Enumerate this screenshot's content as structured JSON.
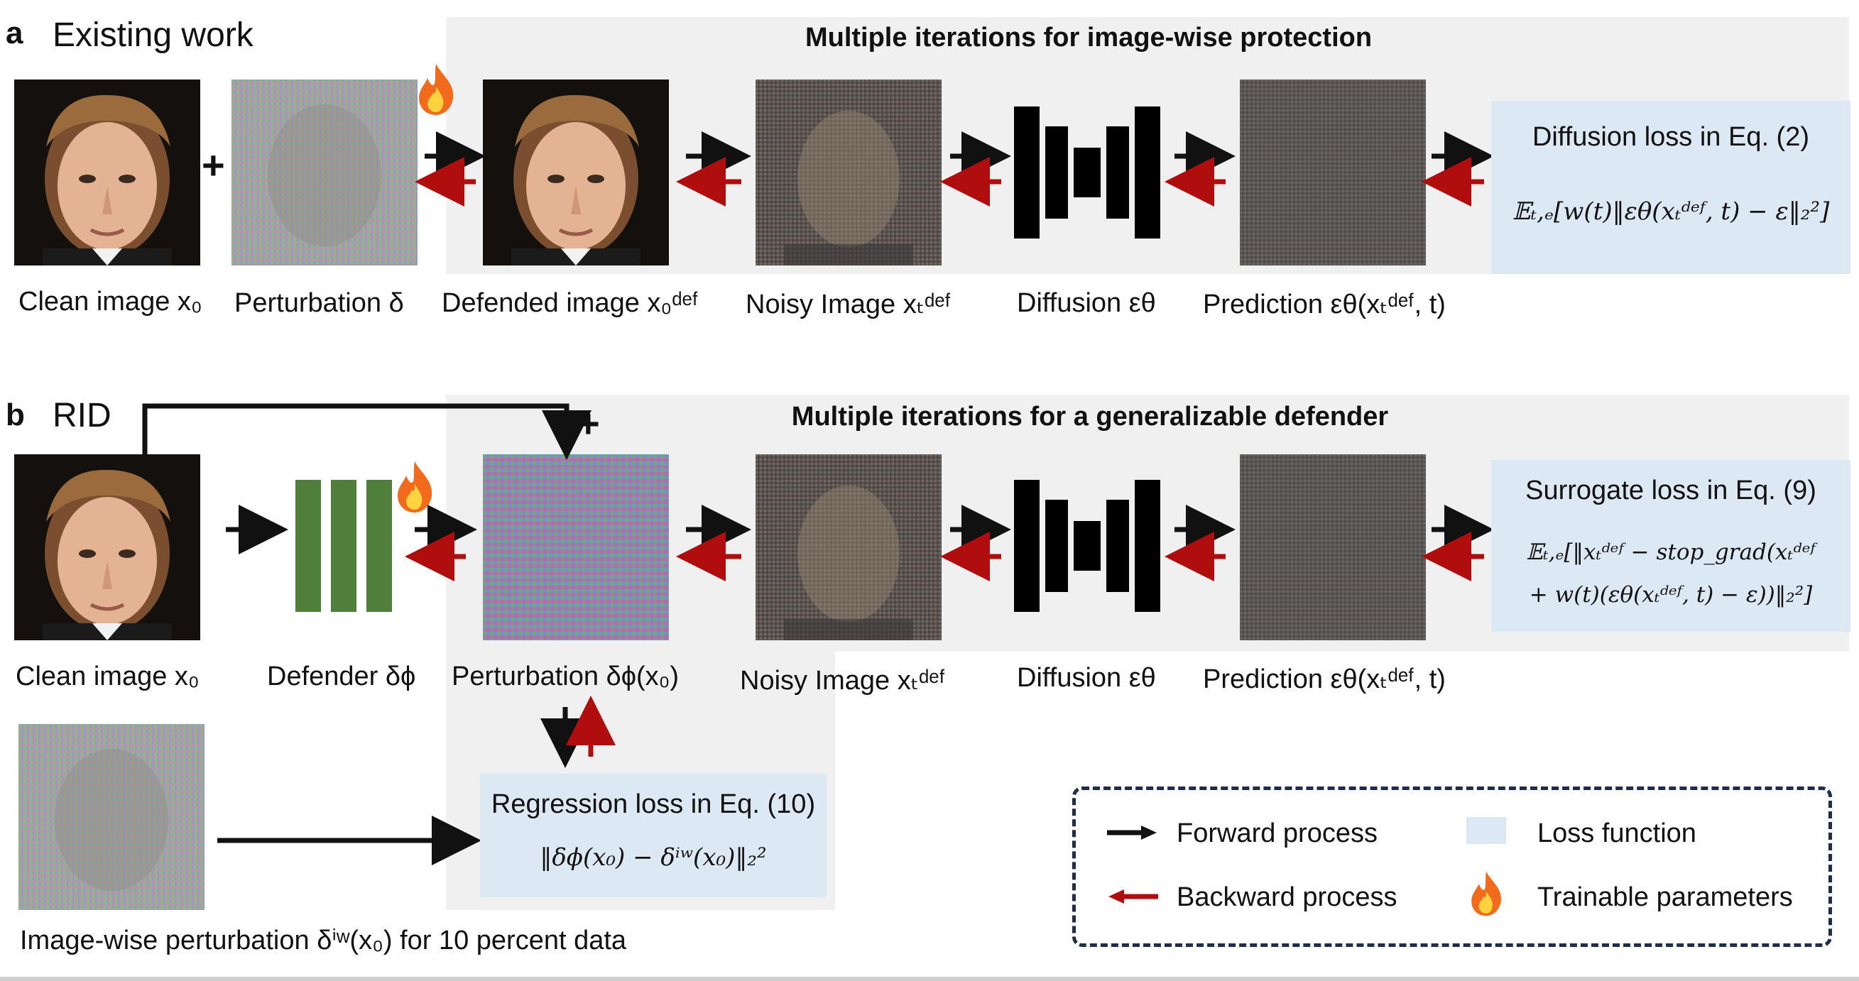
{
  "panel_a": {
    "letter": "a",
    "name": "Existing work",
    "section_title": "Multiple iterations for image-wise protection",
    "labels": {
      "clean": "Clean image x₀",
      "perturbation": "Perturbation δ",
      "defended": "Defended image x₀ᵈᵉᶠ",
      "noisy": "Noisy Image xₜᵈᵉᶠ",
      "diffusion": "Diffusion εθ",
      "prediction": "Prediction εθ(xₜᵈᵉᶠ, t)"
    },
    "loss_title": "Diffusion loss in Eq. (2)",
    "loss_eq": "𝔼ₜ,ₑ[w(t)‖εθ(xₜᵈᵉᶠ, t) − ε‖₂²]"
  },
  "panel_b": {
    "letter": "b",
    "name": "RID",
    "section_title": "Multiple iterations for a generalizable defender",
    "plus": "+",
    "labels": {
      "clean": "Clean image x₀",
      "defender": "Defender δϕ",
      "perturbation": "Perturbation δϕ(x₀)",
      "noisy": "Noisy Image xₜᵈᵉᶠ",
      "diffusion": "Diffusion εθ",
      "prediction": "Prediction εθ(xₜᵈᵉᶠ, t)",
      "imagewise": "Image-wise perturbation δⁱʷ(x₀) for 10 percent data"
    },
    "surrogate_title": "Surrogate loss in Eq. (9)",
    "surrogate_eq_line1": "𝔼ₜ,ₑ[‖xₜᵈᵉᶠ − stop_grad(xₜᵈᵉᶠ",
    "surrogate_eq_line2": "+ w(t)(εθ(xₜᵈᵉᶠ, t) − ε))‖₂²]",
    "regression_title": "Regression loss in Eq. (10)",
    "regression_eq": "‖δϕ(x₀) − δⁱʷ(x₀)‖₂²"
  },
  "a_plus": "+",
  "legend": {
    "forward": "Forward process",
    "backward": "Backward process",
    "loss": "Loss function",
    "trainable": "Trainable parameters"
  },
  "colors": {
    "forward_arrow": "#111111",
    "backward_arrow": "#b00e0e",
    "loss_box": "#dce9f5",
    "panel_bg": "#f0f0f0",
    "defender_green": "#4f7f3a",
    "legend_border": "#1e2d4a",
    "flame_outer": "#f26b1d",
    "flame_inner": "#ffd23f"
  }
}
